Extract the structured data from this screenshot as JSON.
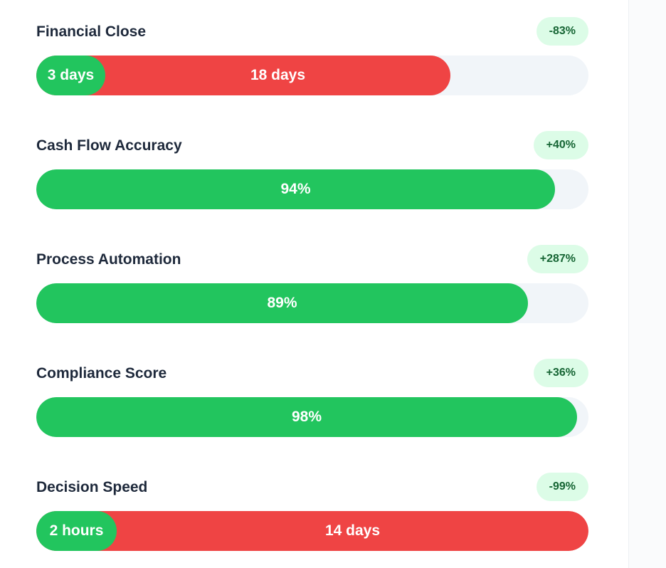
{
  "metrics": [
    {
      "title": "Financial Close",
      "change": "-83%",
      "type": "comparison",
      "old_value": "18 days",
      "new_value": "3 days",
      "old_fraction": 0.75,
      "new_fraction": 0.125
    },
    {
      "title": "Cash Flow Accuracy",
      "change": "+40%",
      "type": "percent",
      "value": "94%",
      "fraction": 0.94
    },
    {
      "title": "Process Automation",
      "change": "+287%",
      "type": "percent",
      "value": "89%",
      "fraction": 0.89
    },
    {
      "title": "Compliance Score",
      "change": "+36%",
      "type": "percent",
      "value": "98%",
      "fraction": 0.98
    },
    {
      "title": "Decision Speed",
      "change": "-99%",
      "type": "comparison",
      "old_value": "14 days",
      "new_value": "2 hours",
      "old_fraction": 1.0,
      "new_fraction": 0.145
    }
  ],
  "colors": {
    "accent_green": "#22c55e",
    "accent_red": "#ef4444",
    "track": "#f1f5f9",
    "badge_bg": "#dcfce7",
    "badge_text": "#166534"
  }
}
